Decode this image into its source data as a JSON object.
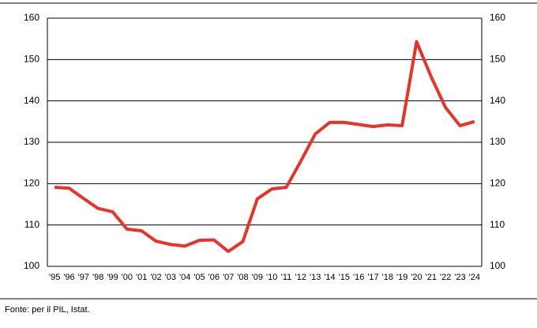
{
  "chart_data": {
    "type": "line",
    "categories": [
      "'95",
      "'96",
      "'97",
      "'98",
      "'99",
      "'00",
      "'01",
      "'02",
      "'03",
      "'04",
      "'05",
      "'06",
      "'07",
      "'08",
      "'09",
      "'10",
      "'11",
      "'12",
      "'13",
      "'14",
      "'15",
      "'16",
      "'17",
      "'18",
      "'19",
      "'20",
      "'21",
      "'22",
      "'23",
      "'24"
    ],
    "values": [
      119.1,
      118.9,
      116.4,
      114.0,
      113.2,
      109.0,
      108.6,
      106.1,
      105.3,
      104.9,
      106.3,
      106.4,
      103.6,
      106.0,
      116.3,
      118.7,
      119.1,
      125.4,
      132.0,
      134.8,
      134.8,
      134.3,
      133.8,
      134.2,
      134.0,
      154.3,
      145.9,
      138.4,
      134.0,
      135.0
    ],
    "color": "#e8332a",
    "ylim": [
      100,
      160
    ],
    "yticks": [
      100,
      110,
      120,
      130,
      140,
      150,
      160
    ],
    "grid": true,
    "source": "Fonte: per il PIL, Istat."
  }
}
